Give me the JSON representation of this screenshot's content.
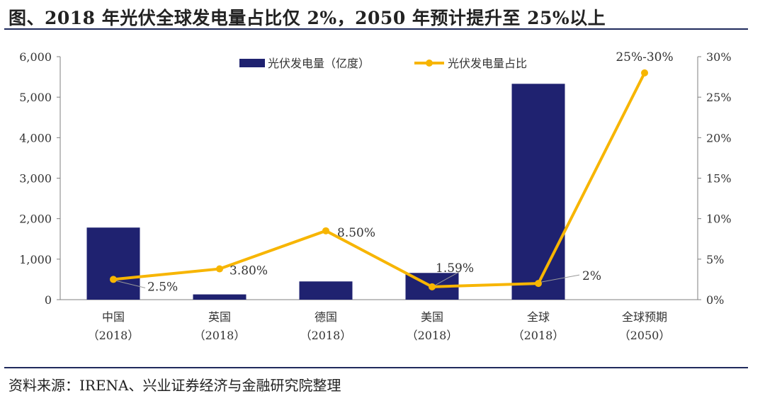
{
  "title": "图、2018 年光伏全球发电量占比仅 2%，2050 年预计提升至 25%以上",
  "source": "资料来源：IRENA、兴业证券经济与金融研究院整理",
  "colors": {
    "bar": "#1f2270",
    "line": "#f7b500",
    "axis": "#7f7f7f",
    "rule": "#1f2a5c"
  },
  "chart_data": {
    "type": "bar",
    "categories": [
      [
        "中国",
        "（2018）"
      ],
      [
        "英国",
        "（2018）"
      ],
      [
        "德国",
        "（2018）"
      ],
      [
        "美国",
        "（2018）"
      ],
      [
        "全球",
        "（2018）"
      ],
      [
        "全球预期",
        "（2050）"
      ]
    ],
    "series": [
      {
        "name": "光伏发电量（亿度）",
        "type": "bar",
        "axis": "left",
        "values": [
          1780,
          130,
          450,
          660,
          5330,
          null
        ]
      },
      {
        "name": "光伏发电量占比",
        "type": "line",
        "axis": "right",
        "values": [
          2.5,
          3.8,
          8.5,
          1.59,
          2.0,
          28.0
        ]
      }
    ],
    "data_labels": [
      "2.5%",
      "3.80%",
      "8.50%",
      "1.59%",
      "2%",
      "25%-30%"
    ],
    "left_axis": {
      "ylim": [
        0,
        6000
      ],
      "ticks": [
        "0",
        "1,000",
        "2,000",
        "3,000",
        "4,000",
        "5,000",
        "6,000"
      ]
    },
    "right_axis": {
      "ylim": [
        0,
        30
      ],
      "ticks": [
        "0%",
        "5%",
        "10%",
        "15%",
        "20%",
        "25%",
        "30%"
      ]
    },
    "legend": "top",
    "grid": false
  }
}
